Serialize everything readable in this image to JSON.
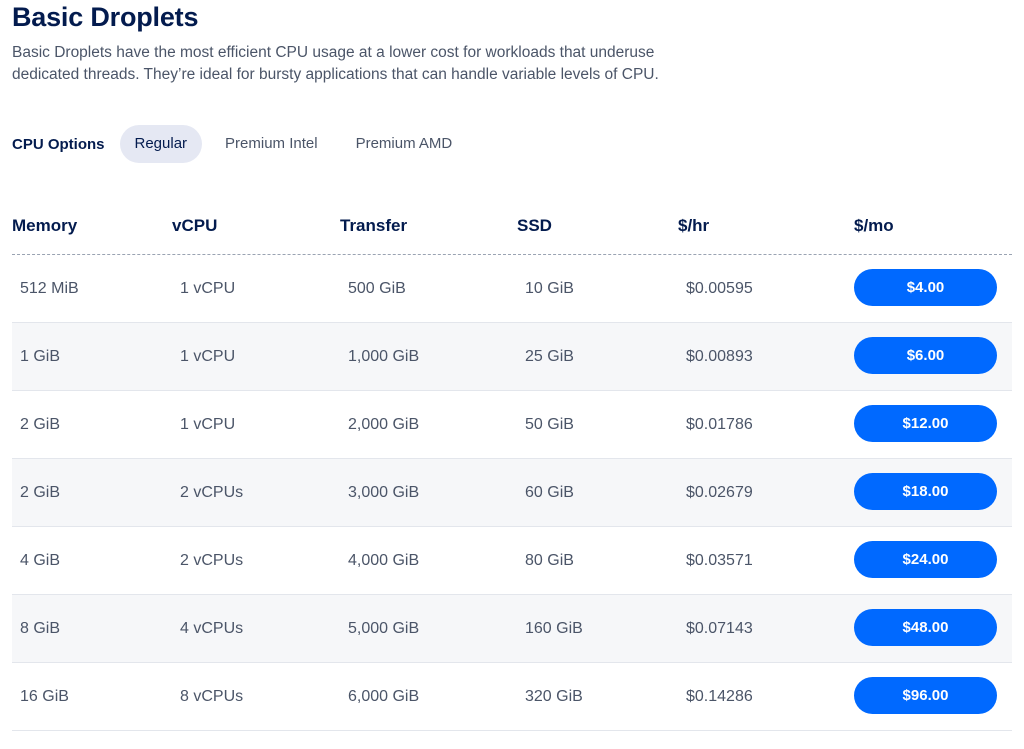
{
  "header": {
    "title": "Basic Droplets",
    "description": "Basic Droplets have the most efficient CPU usage at a lower cost for workloads that underuse dedicated threads. They’re ideal for bursty applications that can handle variable levels of CPU."
  },
  "cpu_options": {
    "label": "CPU Options",
    "tabs": [
      {
        "label": "Regular",
        "active": true
      },
      {
        "label": "Premium Intel",
        "active": false
      },
      {
        "label": "Premium AMD",
        "active": false
      }
    ]
  },
  "table": {
    "columns": [
      "Memory",
      "vCPU",
      "Transfer",
      "SSD",
      "$/hr",
      "$/mo"
    ],
    "rows": [
      {
        "memory": "512 MiB",
        "vcpu": "1 vCPU",
        "transfer": "500 GiB",
        "ssd": "10 GiB",
        "hourly": "$0.00595",
        "monthly": "$4.00"
      },
      {
        "memory": "1 GiB",
        "vcpu": "1 vCPU",
        "transfer": "1,000 GiB",
        "ssd": "25 GiB",
        "hourly": "$0.00893",
        "monthly": "$6.00"
      },
      {
        "memory": "2 GiB",
        "vcpu": "1 vCPU",
        "transfer": "2,000 GiB",
        "ssd": "50 GiB",
        "hourly": "$0.01786",
        "monthly": "$12.00"
      },
      {
        "memory": "2 GiB",
        "vcpu": "2 vCPUs",
        "transfer": "3,000 GiB",
        "ssd": "60 GiB",
        "hourly": "$0.02679",
        "monthly": "$18.00"
      },
      {
        "memory": "4 GiB",
        "vcpu": "2 vCPUs",
        "transfer": "4,000 GiB",
        "ssd": "80 GiB",
        "hourly": "$0.03571",
        "monthly": "$24.00"
      },
      {
        "memory": "8 GiB",
        "vcpu": "4 vCPUs",
        "transfer": "5,000 GiB",
        "ssd": "160 GiB",
        "hourly": "$0.07143",
        "monthly": "$48.00"
      },
      {
        "memory": "16 GiB",
        "vcpu": "8 vCPUs",
        "transfer": "6,000 GiB",
        "ssd": "320 GiB",
        "hourly": "$0.14286",
        "monthly": "$96.00"
      }
    ]
  },
  "colors": {
    "brand_blue": "#0069ff",
    "heading": "#031b4e",
    "body_text": "#4b5568",
    "active_tab_bg": "#e5e8f3",
    "alt_row_bg": "#f6f7f9"
  }
}
